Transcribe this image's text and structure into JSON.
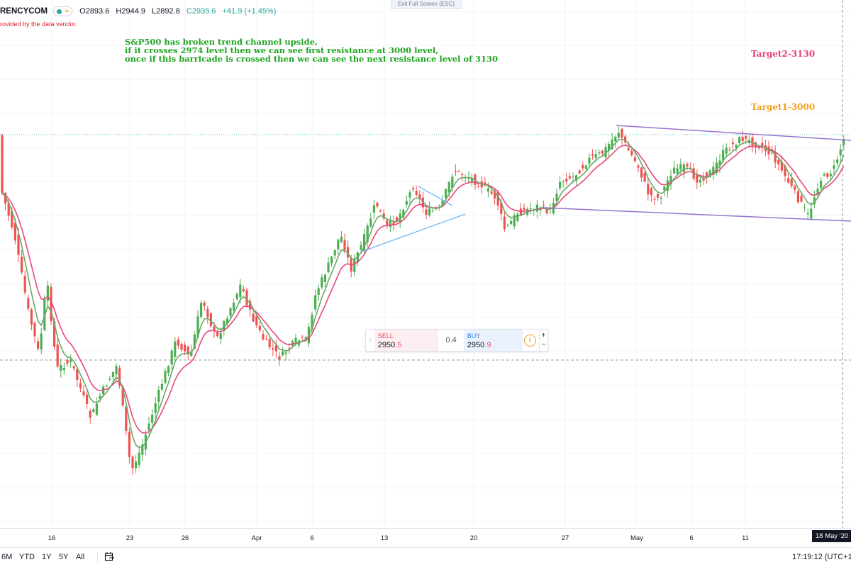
{
  "header": {
    "symbol": "RENCYCOM",
    "open": "O2893.6",
    "high": "H2944.9",
    "low": "L2892.8",
    "close": "C2935.6",
    "change": "+41.9 (+1.45%)",
    "vendor_note": "rovided by the data vendor.",
    "exit_fullscreen": "Exit Full Screen (ESC)",
    "colors": {
      "up": "#26a69a",
      "change": "#26a69a"
    }
  },
  "annotations": {
    "line1": "S&P500 has broken trend channel upside,",
    "line2": "if it crosses 2974 level then we can see first resistance at 3000 level,",
    "line3": "once if this barricade is crossed then we can see the next resistance level of 3130",
    "target2": "Target2-3130",
    "target1": "Target1-3000",
    "colors": {
      "note": "#1ea51e",
      "target2": "#e23e7a",
      "target1": "#f4a020"
    }
  },
  "trade_widget": {
    "sell_label": "SELL",
    "sell_price_main": "2950",
    "sell_price_hl": ".5",
    "spread": "0.4",
    "buy_label": "BUY",
    "buy_price_main": "2950",
    "buy_price_hl": ".9",
    "plus": "+",
    "minus": "−",
    "info_icon": "info-circle-icon"
  },
  "x_axis": {
    "labels": [
      "16",
      "23",
      "26",
      "Apr",
      "6",
      "13",
      "20",
      "27",
      "May",
      "6",
      "11"
    ],
    "current": "18 May '20"
  },
  "bottom_bar": {
    "ranges": [
      "6M",
      "YTD",
      "1Y",
      "5Y",
      "All"
    ],
    "calendar_icon": "calendar-goto-icon",
    "time": "17:19:12 (UTC+1"
  },
  "chart_data": {
    "type": "candlestick",
    "colors": {
      "up": "#4caf50",
      "down": "#ef5350",
      "ema_fast": "#6aa86a",
      "ema_slow": "#e8487a",
      "channel": "#9575cd",
      "triangle": "#64b5f6"
    }
  }
}
